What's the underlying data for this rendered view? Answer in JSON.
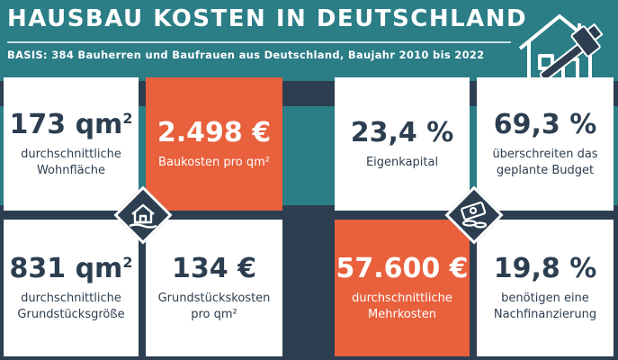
{
  "header": {
    "title": "HAUSBAU KOSTEN IN DEUTSCHLAND",
    "subtitle": "BASIS: 384 Bauherren und Baufrauen aus Deutschland, Baujahr 2010 bis 2022"
  },
  "tiles": {
    "wohnflaeche": {
      "value": "173 qm",
      "sup": "2",
      "label": "durchschnittliche\nWohnfläche"
    },
    "baukosten": {
      "value": "2.498 €",
      "label": "Baukosten pro qm²"
    },
    "grundstueck": {
      "value": "831 qm",
      "sup": "2",
      "label": "durchschnittliche\nGrundstücksgröße"
    },
    "grundstueckskosten": {
      "value": "134 €",
      "label": "Grundstückskosten\npro qm²"
    },
    "eigenkapital": {
      "value": "23,4 %",
      "label": "Eigenkapital"
    },
    "budget": {
      "value": "69,3 %",
      "label": "überschreiten das\ngeplante Budget"
    },
    "mehrkosten": {
      "value": "57.600 €",
      "label": "durchschnittliche\nMehrkosten"
    },
    "nachfinanzierung": {
      "value": "19,8 %",
      "label": "benötigen eine\nNachfinanzierung"
    }
  },
  "colors": {
    "teal": "#2b7d86",
    "dark": "#2c3e50",
    "orange": "#e8603c",
    "white": "#ffffff"
  },
  "icons": [
    "house-hammer-icon",
    "house-icon",
    "money-icon"
  ]
}
